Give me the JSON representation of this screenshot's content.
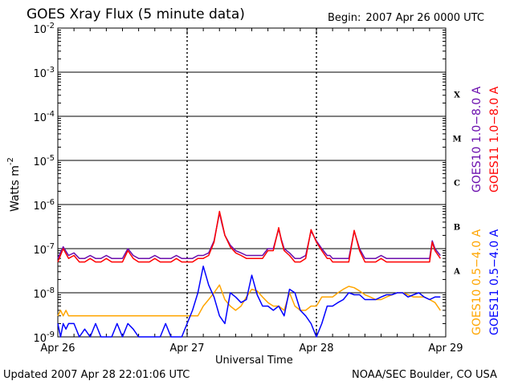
{
  "header": {
    "title": "GOES Xray Flux (5 minute data)",
    "begin_label": "Begin:",
    "begin_value": "2007 Apr 26 0000 UTC"
  },
  "footer": {
    "updated": "Updated 2007 Apr 28 22:01:06 UTC",
    "credit": "NOAA/SEC Boulder, CO USA"
  },
  "colors": {
    "goes10_long": "#6a0dad",
    "goes11_long": "#ff0000",
    "goes10_short": "#ffa500",
    "goes11_short": "#0000ff",
    "grid": "#000000"
  },
  "chart_data": {
    "type": "line",
    "title": "GOES Xray Flux (5 minute data)",
    "xlabel": "Universal Time",
    "ylabel": "Watts m",
    "ylabel_sup": "-2",
    "y_scale": "log",
    "ylim": [
      1e-09,
      0.01
    ],
    "xlim": [
      0,
      72
    ],
    "x_units": "hours since 2007 Apr 26 0000 UTC",
    "x_ticks": [
      {
        "x": 0,
        "label": "Apr 26"
      },
      {
        "x": 24,
        "label": "Apr 27"
      },
      {
        "x": 48,
        "label": "Apr 28"
      },
      {
        "x": 72,
        "label": "Apr 29"
      }
    ],
    "y_ticks": [
      {
        "exp": -9,
        "base": "10",
        "sup": "-9"
      },
      {
        "exp": -8,
        "base": "10",
        "sup": "-8"
      },
      {
        "exp": -7,
        "base": "10",
        "sup": "-7"
      },
      {
        "exp": -6,
        "base": "10",
        "sup": "-6"
      },
      {
        "exp": -5,
        "base": "10",
        "sup": "-5"
      },
      {
        "exp": -4,
        "base": "10",
        "sup": "-4"
      },
      {
        "exp": -3,
        "base": "10",
        "sup": "-3"
      },
      {
        "exp": -2,
        "base": "10",
        "sup": "-2"
      }
    ],
    "flare_classes": [
      {
        "label": "X",
        "exp": -3.5
      },
      {
        "label": "M",
        "exp": -4.5
      },
      {
        "label": "C",
        "exp": -5.5
      },
      {
        "label": "B",
        "exp": -6.5
      },
      {
        "label": "A",
        "exp": -7.5
      }
    ],
    "grid": "horizontal lines at each decade from 1e-8 to 1e-3, dotted vertical lines at day boundaries",
    "series": [
      {
        "name": "GOES10 1.0-8.0 A",
        "legend_sat": "GOES10",
        "legend_band": "1.0−8.0 A",
        "color": "#6a0dad",
        "x": [
          0,
          1,
          2,
          3,
          4,
          5,
          6,
          7,
          8,
          9,
          10,
          11,
          12,
          13,
          14,
          15,
          16,
          17,
          18,
          19,
          20,
          21,
          22,
          23,
          24,
          25,
          26,
          27,
          28,
          29,
          30,
          30.5,
          31,
          32,
          33,
          34,
          35,
          36,
          37,
          38,
          39,
          40,
          41,
          41.5,
          42,
          43,
          44,
          45,
          46,
          47,
          48,
          49,
          50,
          50.5,
          51,
          52,
          53,
          54,
          55,
          56,
          57,
          58,
          59,
          60,
          61,
          62,
          63,
          64,
          65,
          66,
          67,
          68,
          69,
          69.5,
          70,
          71
        ],
        "y": [
          6e-08,
          1.1e-07,
          7e-08,
          8e-08,
          6e-08,
          6e-08,
          7e-08,
          6e-08,
          6e-08,
          7e-08,
          6e-08,
          6e-08,
          6e-08,
          1e-07,
          7e-08,
          6e-08,
          6e-08,
          6e-08,
          7e-08,
          6e-08,
          6e-08,
          6e-08,
          7e-08,
          6e-08,
          6e-08,
          6e-08,
          7e-08,
          7e-08,
          8e-08,
          1.5e-07,
          6.5e-07,
          3.5e-07,
          2e-07,
          1.2e-07,
          9e-08,
          8e-08,
          7e-08,
          7e-08,
          7e-08,
          7e-08,
          1e-07,
          1e-07,
          2.8e-07,
          1.6e-07,
          1e-07,
          8e-08,
          6e-08,
          6e-08,
          7e-08,
          2.5e-07,
          1.5e-07,
          1e-07,
          7e-08,
          7e-08,
          6e-08,
          6e-08,
          6e-08,
          6e-08,
          2.5e-07,
          1e-07,
          6e-08,
          6e-08,
          6e-08,
          7e-08,
          6e-08,
          6e-08,
          6e-08,
          6e-08,
          6e-08,
          6e-08,
          6e-08,
          6e-08,
          6e-08,
          1.5e-07,
          1e-07,
          7e-08
        ]
      },
      {
        "name": "GOES11 1.0-8.0 A",
        "legend_sat": "GOES11",
        "legend_band": "1.0−8.0 A",
        "color": "#ff0000",
        "x": [
          0,
          1,
          2,
          3,
          4,
          5,
          6,
          7,
          8,
          9,
          10,
          11,
          12,
          13,
          14,
          15,
          16,
          17,
          18,
          19,
          20,
          21,
          22,
          23,
          24,
          25,
          26,
          27,
          28,
          29,
          30,
          30.5,
          31,
          32,
          33,
          34,
          35,
          36,
          37,
          38,
          39,
          40,
          41,
          41.5,
          42,
          43,
          44,
          45,
          46,
          47,
          48,
          49,
          50,
          50.5,
          51,
          52,
          53,
          54,
          55,
          56,
          57,
          58,
          59,
          60,
          61,
          62,
          63,
          64,
          65,
          66,
          67,
          68,
          69,
          69.5,
          70,
          71
        ],
        "y": [
          5e-08,
          1e-07,
          6e-08,
          7e-08,
          5e-08,
          5e-08,
          6e-08,
          5e-08,
          5e-08,
          6e-08,
          5e-08,
          5e-08,
          5e-08,
          9e-08,
          6e-08,
          5e-08,
          5e-08,
          5e-08,
          6e-08,
          5e-08,
          5e-08,
          5e-08,
          6e-08,
          5e-08,
          5e-08,
          5e-08,
          6e-08,
          6e-08,
          7e-08,
          1.4e-07,
          7e-07,
          3.8e-07,
          2e-07,
          1.1e-07,
          8e-08,
          7e-08,
          6e-08,
          6e-08,
          6e-08,
          6e-08,
          9e-08,
          9e-08,
          3e-07,
          1.5e-07,
          9e-08,
          7e-08,
          5e-08,
          5e-08,
          6e-08,
          2.7e-07,
          1.4e-07,
          9e-08,
          6e-08,
          6e-08,
          5e-08,
          5e-08,
          5e-08,
          5e-08,
          2.6e-07,
          9e-08,
          5e-08,
          5e-08,
          5e-08,
          6e-08,
          5e-08,
          5e-08,
          5e-08,
          5e-08,
          5e-08,
          5e-08,
          5e-08,
          5e-08,
          5e-08,
          1.4e-07,
          9e-08,
          6e-08
        ]
      },
      {
        "name": "GOES10 0.5-4.0 A",
        "legend_sat": "GOES10",
        "legend_band": "0.5−4.0 A",
        "color": "#ffa500",
        "x": [
          0,
          0.5,
          1,
          1.5,
          2,
          3,
          4,
          5,
          6,
          7,
          8,
          9,
          10,
          11,
          12,
          13,
          14,
          15,
          16,
          17,
          18,
          19,
          20,
          21,
          22,
          23,
          24,
          25,
          26,
          27,
          28,
          29,
          30,
          31,
          32,
          33,
          34,
          35,
          36,
          37,
          38,
          39,
          40,
          41,
          42,
          43,
          44,
          45,
          46,
          47,
          48,
          49,
          50,
          51,
          52,
          53,
          54,
          55,
          56,
          57,
          58,
          59,
          60,
          61,
          62,
          63,
          64,
          65,
          66,
          67,
          68,
          69,
          70,
          71
        ],
        "y": [
          3e-09,
          4e-09,
          3e-09,
          4e-09,
          3e-09,
          3e-09,
          3e-09,
          3e-09,
          3e-09,
          3e-09,
          3e-09,
          3e-09,
          3e-09,
          3e-09,
          3e-09,
          3e-09,
          3e-09,
          3e-09,
          3e-09,
          3e-09,
          3e-09,
          3e-09,
          3e-09,
          3e-09,
          3e-09,
          3e-09,
          3e-09,
          3e-09,
          3e-09,
          5e-09,
          7e-09,
          1e-08,
          1.5e-08,
          7e-09,
          5e-09,
          4e-09,
          5e-09,
          8e-09,
          1.2e-08,
          1.1e-08,
          8e-09,
          6e-09,
          5e-09,
          5e-09,
          4e-09,
          1e-08,
          5e-09,
          4e-09,
          4e-09,
          5e-09,
          5e-09,
          8e-09,
          8e-09,
          8e-09,
          1e-08,
          1.2e-08,
          1.4e-08,
          1.3e-08,
          1.1e-08,
          9e-09,
          8e-09,
          7e-09,
          7e-09,
          8e-09,
          9e-09,
          1e-08,
          1e-08,
          9e-09,
          8e-09,
          8e-09,
          8e-09,
          7e-09,
          6e-09,
          4e-09
        ]
      },
      {
        "name": "GOES11 0.5-4.0 A",
        "legend_sat": "GOES11",
        "legend_band": "0.5−4.0 A",
        "color": "#0000ff",
        "x": [
          0,
          0.5,
          1,
          1.5,
          2,
          3,
          4,
          5,
          6,
          7,
          8,
          9,
          10,
          11,
          12,
          13,
          14,
          15,
          16,
          17,
          18,
          19,
          20,
          21,
          22,
          23,
          24,
          25,
          26,
          27,
          28,
          29,
          30,
          31,
          32,
          33,
          34,
          35,
          36,
          37,
          38,
          39,
          40,
          41,
          42,
          43,
          44,
          45,
          46,
          47,
          48,
          49,
          50,
          51,
          52,
          53,
          54,
          55,
          56,
          57,
          58,
          59,
          60,
          61,
          62,
          63,
          64,
          65,
          66,
          67,
          68,
          69,
          70,
          71
        ],
        "y": [
          2e-09,
          1e-09,
          2e-09,
          1.5e-09,
          2e-09,
          2e-09,
          1e-09,
          1.5e-09,
          1e-09,
          2e-09,
          1e-09,
          1e-09,
          1e-09,
          2e-09,
          1e-09,
          2e-09,
          1.5e-09,
          1e-09,
          1e-09,
          1e-09,
          1e-09,
          1e-09,
          2e-09,
          1e-09,
          1e-09,
          1e-09,
          2e-09,
          4e-09,
          1e-08,
          4e-08,
          1.5e-08,
          8e-09,
          3e-09,
          2e-09,
          1e-08,
          8e-09,
          6e-09,
          7e-09,
          2.5e-08,
          9e-09,
          5e-09,
          5e-09,
          4e-09,
          5e-09,
          3e-09,
          1.2e-08,
          1e-08,
          4e-09,
          3e-09,
          2e-09,
          1e-09,
          2e-09,
          5e-09,
          5e-09,
          6e-09,
          7e-09,
          1e-08,
          9e-09,
          9e-09,
          7e-09,
          7e-09,
          7e-09,
          8e-09,
          9e-09,
          9e-09,
          1e-08,
          1e-08,
          8e-09,
          9e-09,
          1e-08,
          8e-09,
          7e-09,
          8e-09,
          8e-09
        ]
      }
    ]
  }
}
